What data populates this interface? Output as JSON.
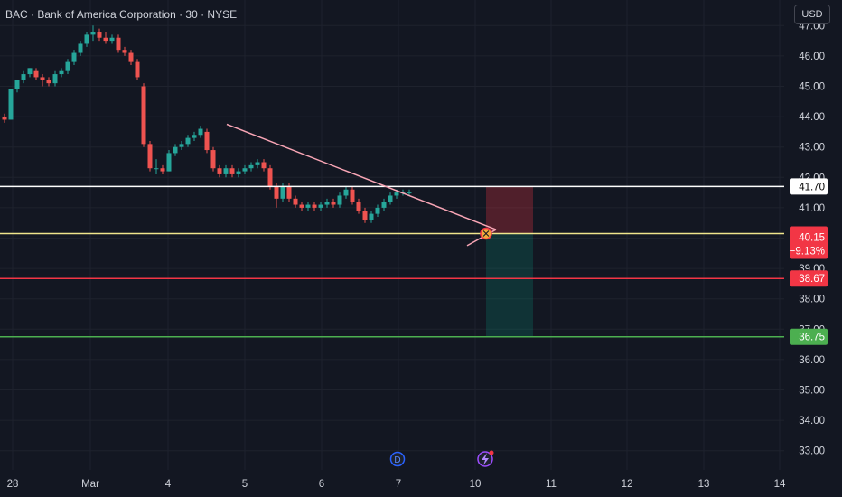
{
  "header": {
    "title": "BAC · Bank of America Corporation · 30 · NYSE"
  },
  "toolbar": {
    "currency_label": "USD"
  },
  "colors": {
    "background": "#131722",
    "up": "#26a69a",
    "down": "#ef5350",
    "grid": "#1e222d",
    "axis_text": "#d1d4dc"
  },
  "chart_data": {
    "type": "candlestick",
    "title": "",
    "y_axis": {
      "ticks": [
        "33.00",
        "34.00",
        "35.00",
        "36.00",
        "37.00",
        "38.00",
        "39.00",
        "40.00",
        "41.00",
        "42.00",
        "43.00",
        "44.00",
        "45.00",
        "46.00",
        "47.00"
      ],
      "range": [
        32.6,
        47.3
      ]
    },
    "x_axis": {
      "ticks": [
        "28",
        "Mar",
        "4",
        "5",
        "6",
        "7",
        "10",
        "11",
        "12",
        "13",
        "14"
      ]
    },
    "candles": [
      [
        44.0,
        44.1,
        43.8,
        43.9
      ],
      [
        43.9,
        44.9,
        43.9,
        44.9
      ],
      [
        44.9,
        45.2,
        44.8,
        45.2
      ],
      [
        45.2,
        45.5,
        45.1,
        45.4
      ],
      [
        45.4,
        45.6,
        45.3,
        45.6
      ],
      [
        45.5,
        45.6,
        45.2,
        45.3
      ],
      [
        45.3,
        45.4,
        45.0,
        45.2
      ],
      [
        45.2,
        45.3,
        45.0,
        45.1
      ],
      [
        45.1,
        45.5,
        45.0,
        45.4
      ],
      [
        45.4,
        45.6,
        45.3,
        45.5
      ],
      [
        45.5,
        45.9,
        45.4,
        45.8
      ],
      [
        45.8,
        46.2,
        45.7,
        46.1
      ],
      [
        46.1,
        46.5,
        46.0,
        46.4
      ],
      [
        46.4,
        46.8,
        46.3,
        46.7
      ],
      [
        46.7,
        47.0,
        46.5,
        46.8
      ],
      [
        46.8,
        46.9,
        46.5,
        46.6
      ],
      [
        46.6,
        46.8,
        46.4,
        46.5
      ],
      [
        46.5,
        46.7,
        46.4,
        46.6
      ],
      [
        46.6,
        46.7,
        46.1,
        46.2
      ],
      [
        46.2,
        46.3,
        46.0,
        46.1
      ],
      [
        46.1,
        46.2,
        45.7,
        45.8
      ],
      [
        45.8,
        45.9,
        45.2,
        45.3
      ],
      [
        45.0,
        45.1,
        43.0,
        43.1
      ],
      [
        43.1,
        43.2,
        42.2,
        42.3
      ],
      [
        42.3,
        42.6,
        42.1,
        42.3
      ],
      [
        42.3,
        42.4,
        42.1,
        42.2
      ],
      [
        42.2,
        42.9,
        42.2,
        42.8
      ],
      [
        42.8,
        43.1,
        42.7,
        43.0
      ],
      [
        43.0,
        43.2,
        42.9,
        43.1
      ],
      [
        43.1,
        43.4,
        43.0,
        43.3
      ],
      [
        43.3,
        43.5,
        43.2,
        43.4
      ],
      [
        43.4,
        43.7,
        43.3,
        43.6
      ],
      [
        43.5,
        43.6,
        42.8,
        42.9
      ],
      [
        42.9,
        43.0,
        42.2,
        42.3
      ],
      [
        42.3,
        42.4,
        42.0,
        42.1
      ],
      [
        42.1,
        42.4,
        42.0,
        42.3
      ],
      [
        42.3,
        42.4,
        42.0,
        42.1
      ],
      [
        42.1,
        42.3,
        42.0,
        42.2
      ],
      [
        42.2,
        42.4,
        42.1,
        42.3
      ],
      [
        42.3,
        42.5,
        42.2,
        42.4
      ],
      [
        42.4,
        42.6,
        42.3,
        42.5
      ],
      [
        42.5,
        42.6,
        42.2,
        42.3
      ],
      [
        42.3,
        42.4,
        41.6,
        41.7
      ],
      [
        41.7,
        41.8,
        41.0,
        41.3
      ],
      [
        41.3,
        41.8,
        41.2,
        41.7
      ],
      [
        41.7,
        41.8,
        41.2,
        41.3
      ],
      [
        41.3,
        41.4,
        41.0,
        41.1
      ],
      [
        41.1,
        41.2,
        40.9,
        41.0
      ],
      [
        41.0,
        41.2,
        40.9,
        41.1
      ],
      [
        41.1,
        41.2,
        40.9,
        41.0
      ],
      [
        41.0,
        41.2,
        40.9,
        41.1
      ],
      [
        41.1,
        41.3,
        41.0,
        41.2
      ],
      [
        41.2,
        41.3,
        41.0,
        41.1
      ],
      [
        41.1,
        41.5,
        41.0,
        41.4
      ],
      [
        41.4,
        41.7,
        41.3,
        41.6
      ],
      [
        41.6,
        41.7,
        41.1,
        41.2
      ],
      [
        41.2,
        41.3,
        40.8,
        40.9
      ],
      [
        40.9,
        41.0,
        40.5,
        40.6
      ],
      [
        40.6,
        40.9,
        40.5,
        40.8
      ],
      [
        40.8,
        41.1,
        40.7,
        41.0
      ],
      [
        41.0,
        41.3,
        40.9,
        41.2
      ],
      [
        41.2,
        41.5,
        41.1,
        41.4
      ],
      [
        41.4,
        41.6,
        41.3,
        41.5
      ],
      [
        41.5,
        41.6,
        41.4,
        41.5
      ],
      [
        41.5,
        41.6,
        41.4,
        41.5
      ]
    ],
    "levels": [
      {
        "price": 41.7,
        "label": "41.70",
        "color": "#ffffff"
      },
      {
        "price": 40.15,
        "label": "40.15",
        "sublabel": "−9.13%",
        "color": "#f0e68c"
      },
      {
        "price": 38.67,
        "label": "38.67",
        "color": "#f23645"
      },
      {
        "price": 36.75,
        "label": "36.75",
        "color": "#4caf50"
      }
    ],
    "trendline": {
      "start": [
        "5",
        43.75
      ],
      "end": [
        "10",
        40.28
      ]
    },
    "position": {
      "entry": 40.15,
      "stop": 41.7,
      "target": 36.75
    },
    "current_price": 40.15,
    "markers": [
      {
        "label": "D",
        "at": "7"
      }
    ]
  }
}
